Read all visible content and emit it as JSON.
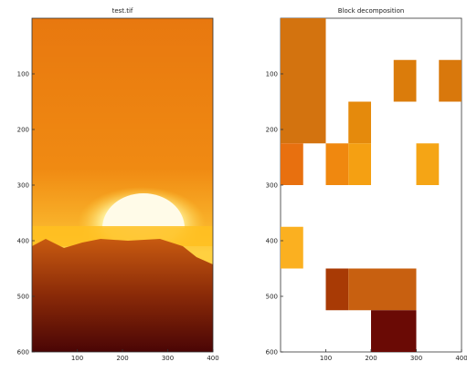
{
  "chart_data": [
    {
      "type": "image",
      "title": "test.tif",
      "xlim": [
        0,
        400
      ],
      "ylim": [
        600,
        0
      ],
      "xticks": [
        100,
        200,
        300,
        400
      ],
      "yticks": [
        100,
        200,
        300,
        400,
        500,
        600
      ]
    },
    {
      "type": "blocks",
      "title": "Block decomposition",
      "xlim": [
        0,
        400
      ],
      "ylim": [
        600,
        0
      ],
      "xticks": [
        100,
        200,
        300,
        400
      ],
      "yticks": [
        100,
        200,
        300,
        400,
        500,
        600
      ],
      "blocks": [
        {
          "x": [
            0,
            100
          ],
          "y": [
            0,
            225
          ],
          "color": "#d3730f"
        },
        {
          "x": [
            250,
            300
          ],
          "y": [
            75,
            150
          ],
          "color": "#db7c0b"
        },
        {
          "x": [
            350,
            400
          ],
          "y": [
            75,
            150
          ],
          "color": "#d9780c"
        },
        {
          "x": [
            150,
            200
          ],
          "y": [
            150,
            225
          ],
          "color": "#e58a0c"
        },
        {
          "x": [
            0,
            50
          ],
          "y": [
            225,
            300
          ],
          "color": "#e8700f"
        },
        {
          "x": [
            100,
            150
          ],
          "y": [
            225,
            300
          ],
          "color": "#f0880f"
        },
        {
          "x": [
            150,
            200
          ],
          "y": [
            225,
            300
          ],
          "color": "#f5a012"
        },
        {
          "x": [
            300,
            350
          ],
          "y": [
            225,
            300
          ],
          "color": "#f5a515"
        },
        {
          "x": [
            0,
            50
          ],
          "y": [
            375,
            450
          ],
          "color": "#fbb020"
        },
        {
          "x": [
            100,
            150
          ],
          "y": [
            450,
            525
          ],
          "color": "#a83a05"
        },
        {
          "x": [
            150,
            300
          ],
          "y": [
            450,
            525
          ],
          "color": "#c86010"
        },
        {
          "x": [
            200,
            300
          ],
          "y": [
            525,
            600
          ],
          "color": "#6a0a05"
        }
      ]
    }
  ]
}
